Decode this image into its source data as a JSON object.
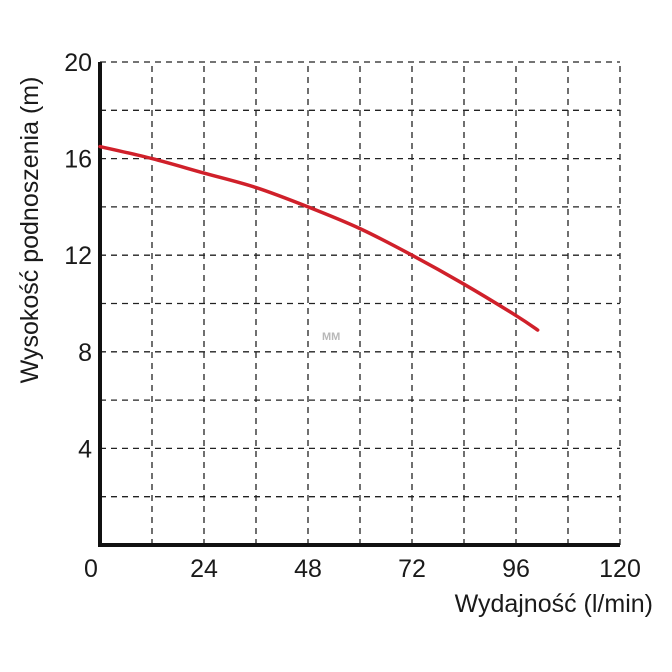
{
  "chart_data": {
    "type": "line",
    "xlabel": "Wydajność (l/min)",
    "ylabel": "Wysokość podnoszenia (m)",
    "xlim": [
      0,
      120
    ],
    "ylim": [
      0,
      20
    ],
    "x_ticks": [
      0,
      24,
      48,
      72,
      96,
      120
    ],
    "y_ticks": [
      0,
      4,
      8,
      12,
      16,
      20
    ],
    "x_ticks_labeled": [
      "0",
      "24",
      "48",
      "72",
      "96",
      "120"
    ],
    "y_ticks_labeled": [
      "4",
      "8",
      "12",
      "16",
      "20"
    ],
    "grid": true,
    "grid_style": "dashed",
    "grid_step_x": 12,
    "grid_step_y": 2,
    "watermark": "MM",
    "series": [
      {
        "color": "#d0202a",
        "x": [
          0,
          12,
          24,
          36,
          48,
          60,
          72,
          84,
          96,
          101
        ],
        "y": [
          16.5,
          16.0,
          15.4,
          14.8,
          14.0,
          13.1,
          12.0,
          10.8,
          9.5,
          8.9
        ]
      }
    ]
  }
}
